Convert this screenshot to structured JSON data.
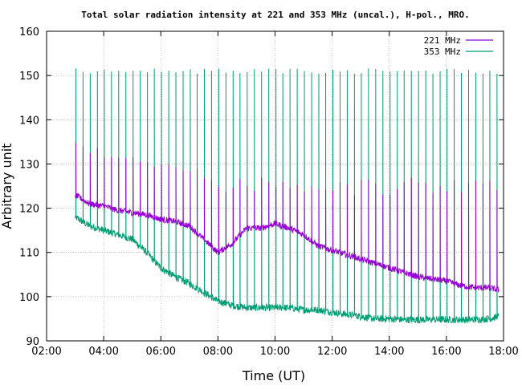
{
  "chart_data": {
    "type": "line",
    "title": "Total solar radiation intensity at 221 and 353 MHz (uncal.), H-pol., MRO.",
    "xlabel": "Time (UT)",
    "ylabel": "Arbitrary unit",
    "xlim": [
      "02:00",
      "18:00"
    ],
    "ylim": [
      90,
      160
    ],
    "x_ticks": [
      "02:00",
      "04:00",
      "06:00",
      "08:00",
      "10:00",
      "12:00",
      "14:00",
      "16:00",
      "18:00"
    ],
    "y_ticks": [
      90,
      100,
      110,
      120,
      130,
      140,
      150,
      160
    ],
    "grid": true,
    "legend": "top-right",
    "series": [
      {
        "name": "221 MHz",
        "color": "#9400D3",
        "x": [
          "03:00",
          "03:30",
          "04:00",
          "04:30",
          "05:00",
          "05:30",
          "06:00",
          "06:30",
          "07:00",
          "07:30",
          "08:00",
          "08:30",
          "09:00",
          "09:30",
          "10:00",
          "10:30",
          "11:00",
          "11:30",
          "12:00",
          "12:30",
          "13:00",
          "13:30",
          "14:00",
          "14:30",
          "15:00",
          "15:30",
          "16:00",
          "16:30",
          "17:00",
          "17:30",
          "17:50"
        ],
        "values": [
          123,
          121,
          120.5,
          119.5,
          119,
          118.5,
          117.5,
          117,
          116,
          113,
          110,
          112,
          115.5,
          115.5,
          116.5,
          115.5,
          114,
          111.5,
          110.5,
          109.5,
          108.5,
          107.5,
          106.5,
          105.5,
          104.5,
          104,
          103.5,
          102.5,
          102,
          102,
          101.5
        ],
        "spike_high": 134,
        "spike_high_late": 125
      },
      {
        "name": "353 MHz",
        "color": "#009E73",
        "x": [
          "03:00",
          "03:30",
          "04:00",
          "04:30",
          "05:00",
          "05:30",
          "06:00",
          "06:30",
          "07:00",
          "07:30",
          "08:00",
          "08:30",
          "09:00",
          "09:30",
          "10:00",
          "10:30",
          "11:00",
          "11:30",
          "12:00",
          "12:30",
          "13:00",
          "13:30",
          "14:00",
          "14:30",
          "15:00",
          "15:30",
          "16:00",
          "16:30",
          "17:00",
          "17:30",
          "17:50"
        ],
        "values": [
          118,
          116,
          115,
          114,
          113,
          110,
          106.5,
          104.5,
          103,
          101,
          99,
          98,
          97.5,
          97.5,
          97.5,
          97.5,
          97,
          97,
          96.5,
          96,
          95.5,
          95,
          95,
          94.8,
          94.8,
          94.8,
          94.8,
          94.8,
          94.8,
          95,
          95.5
        ],
        "spike_high": 151
      }
    ]
  }
}
